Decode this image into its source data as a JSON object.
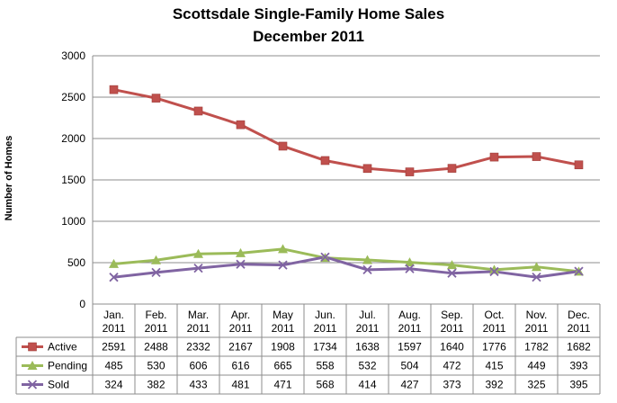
{
  "chart_data": {
    "type": "line",
    "title": "Scottsdale Single-Family Home Sales",
    "subtitle": "December 2011",
    "ylabel": "Number of Homes",
    "xlabel": "",
    "ylim": [
      0,
      3000
    ],
    "yticks": [
      "0",
      "500",
      "1000",
      "1500",
      "2000",
      "2500",
      "3000"
    ],
    "grid": "horizontal",
    "legend": "data-table",
    "categories": [
      [
        "Jan.",
        "2011"
      ],
      [
        "Feb.",
        "2011"
      ],
      [
        "Mar.",
        "2011"
      ],
      [
        "Apr.",
        "2011"
      ],
      [
        "May",
        "2011"
      ],
      [
        "Jun.",
        "2011"
      ],
      [
        "Jul.",
        "2011"
      ],
      [
        "Aug.",
        "2011"
      ],
      [
        "Sep.",
        "2011"
      ],
      [
        "Oct.",
        "2011"
      ],
      [
        "Nov.",
        "2011"
      ],
      [
        "Dec.",
        "2011"
      ]
    ],
    "series": [
      {
        "name": "Active",
        "color": "#c0504d",
        "marker": "square",
        "values": [
          2591,
          2488,
          2332,
          2167,
          1908,
          1734,
          1638,
          1597,
          1640,
          1776,
          1782,
          1682
        ]
      },
      {
        "name": "Pending",
        "color": "#9bbb59",
        "marker": "triangle",
        "values": [
          485,
          530,
          606,
          616,
          665,
          558,
          532,
          504,
          472,
          415,
          449,
          393
        ]
      },
      {
        "name": "Sold",
        "color": "#8064a2",
        "marker": "x",
        "values": [
          324,
          382,
          433,
          481,
          471,
          568,
          414,
          427,
          373,
          392,
          325,
          395
        ]
      }
    ]
  }
}
